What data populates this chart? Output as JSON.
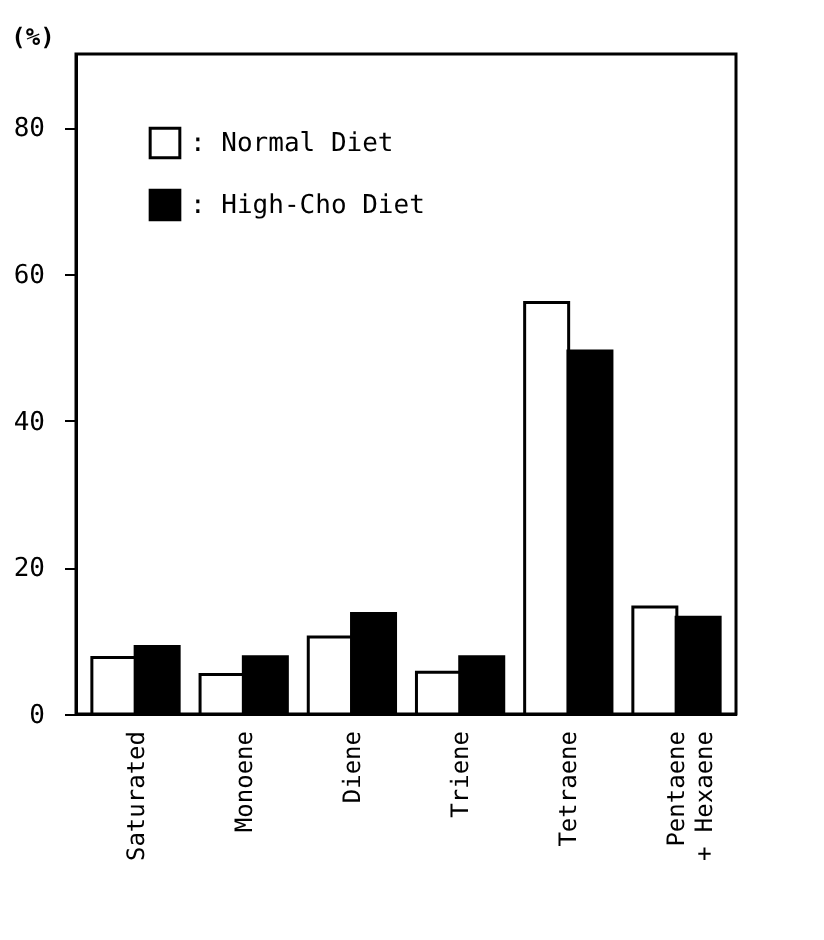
{
  "chart_data": {
    "type": "bar",
    "ylabel": "(%)",
    "categories": [
      "Saturated",
      "Monoene",
      "Diene",
      "Triene",
      "Tetraene",
      "Pentaene\n+ Hexaene"
    ],
    "series": [
      {
        "name": ": Normal Diet",
        "color": "#ffffff",
        "values": [
          7.7,
          5.4,
          10.5,
          5.7,
          56.1,
          14.6
        ]
      },
      {
        "name": ": High-Cho Diet",
        "color": "#000000",
        "values": [
          9.2,
          7.8,
          13.7,
          7.8,
          49.5,
          13.2
        ]
      }
    ],
    "ylim": [
      0,
      90
    ],
    "yticks": [
      0,
      20,
      40,
      60,
      80
    ],
    "grid": false,
    "legend": "top left"
  }
}
